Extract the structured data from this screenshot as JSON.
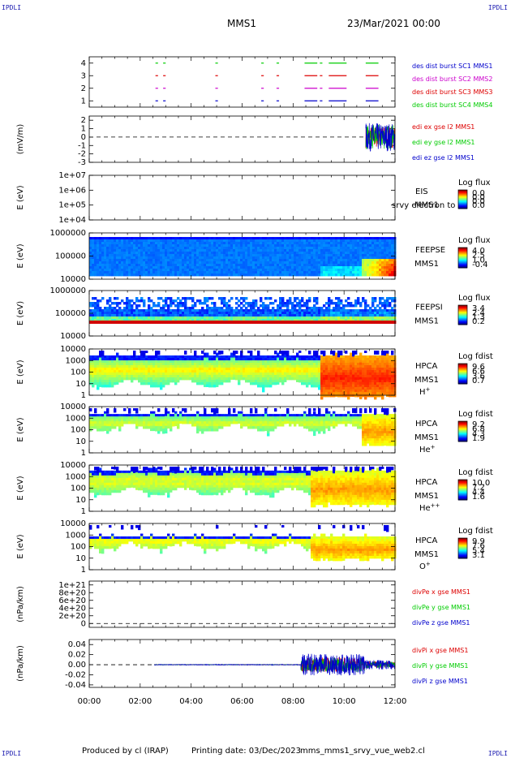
{
  "header": {
    "corner_tl": "IPDLI",
    "corner_tr": "IPDLI",
    "corner_bl": "IPDLI",
    "corner_br": "IPDLI",
    "spacecraft": "MMS1",
    "date": "23/Mar/2021 00:00"
  },
  "footer": {
    "produced": "Produced by cl (IRAP)",
    "printing": "Printing date: 03/Dec/2023",
    "script": "mms_mms1_srvy_vue_web2.cl"
  },
  "chart_data": {
    "type": "multi-panel",
    "x_axis": {
      "range": [
        "00:00",
        "12:00"
      ],
      "ticks": [
        "00:00",
        "02:00",
        "04:00",
        "06:00",
        "08:00",
        "10:00",
        "12:00"
      ]
    },
    "panels": [
      {
        "id": "burst",
        "type": "availability",
        "ylabel": "",
        "ylim": [
          0.5,
          4.5
        ],
        "yticks": [
          "1",
          "2",
          "3",
          "4"
        ],
        "series": [
          {
            "name": "des dist burst SC1 MMS1",
            "color": "#0000cc",
            "y": 1,
            "intervals": [
              [
                2.6,
                2.7
              ],
              [
                2.9,
                3.0
              ],
              [
                4.95,
                5.05
              ],
              [
                6.75,
                6.85
              ],
              [
                7.35,
                7.45
              ],
              [
                8.45,
                8.95
              ],
              [
                9.05,
                9.15
              ],
              [
                9.4,
                10.1
              ],
              [
                10.85,
                11.35
              ]
            ]
          },
          {
            "name": "des dist burst SC2 MMS2",
            "color": "#cc00cc",
            "y": 2,
            "intervals": [
              [
                2.6,
                2.7
              ],
              [
                2.9,
                3.0
              ],
              [
                4.95,
                5.05
              ],
              [
                6.75,
                6.85
              ],
              [
                7.35,
                7.45
              ],
              [
                8.45,
                8.95
              ],
              [
                9.05,
                9.15
              ],
              [
                9.4,
                10.1
              ],
              [
                10.85,
                11.35
              ]
            ]
          },
          {
            "name": "des dist burst SC3 MMS3",
            "color": "#dd0000",
            "y": 3,
            "intervals": [
              [
                2.6,
                2.7
              ],
              [
                2.9,
                3.0
              ],
              [
                4.95,
                5.05
              ],
              [
                6.75,
                6.85
              ],
              [
                7.35,
                7.45
              ],
              [
                8.45,
                8.95
              ],
              [
                9.05,
                9.15
              ],
              [
                9.4,
                10.1
              ],
              [
                10.85,
                11.35
              ]
            ]
          },
          {
            "name": "des dist burst SC4 MMS4",
            "color": "#00cc00",
            "y": 4,
            "intervals": [
              [
                2.6,
                2.7
              ],
              [
                2.9,
                3.0
              ],
              [
                4.95,
                5.05
              ],
              [
                6.75,
                6.85
              ],
              [
                7.35,
                7.45
              ],
              [
                8.45,
                8.95
              ],
              [
                9.05,
                9.15
              ],
              [
                9.4,
                10.1
              ],
              [
                10.85,
                11.35
              ]
            ]
          }
        ]
      },
      {
        "id": "edi",
        "type": "line",
        "ylabel": "(mV/m)",
        "ylim": [
          -3,
          2.5
        ],
        "yticks": [
          "2",
          "1",
          "0",
          "-1",
          "-2",
          "-3"
        ],
        "zero_line": true,
        "series": [
          {
            "name": "edi ex gse l2 MMS1",
            "color": "#dd0000",
            "t_start": 10.85,
            "t_end": 12.0,
            "amplitude": 1.6
          },
          {
            "name": "edi ey gse l2 MMS1",
            "color": "#00cc00",
            "t_start": 10.85,
            "t_end": 12.0,
            "amplitude": 1.8
          },
          {
            "name": "edi ez gse l2 MMS1",
            "color": "#0000cc",
            "t_start": 10.85,
            "t_end": 12.0,
            "amplitude": 1.4
          }
        ]
      },
      {
        "id": "eis",
        "type": "spectrogram",
        "ylabel": "E (eV)",
        "yticks": [
          "1e+07",
          "1e+06",
          "1e+05",
          "1e+04"
        ],
        "instrument": [
          "EIS",
          "MMS1"
        ],
        "overlay_text": "srvy electron to",
        "colorbar": {
          "title": "Log flux",
          "ticks": [
            "0.0",
            "0.0",
            "0.0",
            "0.0"
          ]
        },
        "fill": "empty"
      },
      {
        "id": "feepse",
        "type": "spectrogram",
        "ylabel": "E (eV)",
        "yticks": [
          "1000000",
          "100000",
          "10000"
        ],
        "instrument": [
          "FEEPSE",
          "MMS1"
        ],
        "colorbar": {
          "title": "Log flux",
          "ticks": [
            "4.0",
            "2.5",
            "1.0",
            "-0.4"
          ]
        },
        "fill": "feepse"
      },
      {
        "id": "feepsi",
        "type": "spectrogram",
        "ylabel": "E (eV)",
        "yticks": [
          "1000000",
          "100000",
          "10000"
        ],
        "instrument": [
          "FEEPSI",
          "MMS1"
        ],
        "colorbar": {
          "title": "Log flux",
          "ticks": [
            "3.4",
            "2.4",
            "1.3",
            "0.2"
          ]
        },
        "fill": "feepsi"
      },
      {
        "id": "hpca_h",
        "type": "spectrogram",
        "ylabel": "E (eV)",
        "yticks": [
          "10000",
          "1000",
          "100",
          "10",
          "1"
        ],
        "instrument": [
          "HPCA",
          "MMS1",
          "H+"
        ],
        "colorbar": {
          "title": "Log fdist",
          "ticks": [
            "9.6",
            "6.6",
            "3.6",
            "0.7"
          ]
        },
        "fill": "hpca_h"
      },
      {
        "id": "hpca_he",
        "type": "spectrogram",
        "ylabel": "E (eV)",
        "yticks": [
          "10000",
          "1000",
          "100",
          "10",
          "1"
        ],
        "instrument": [
          "HPCA",
          "MMS1",
          "He+"
        ],
        "colorbar": {
          "title": "Log fdist",
          "ticks": [
            "9.2",
            "6.8",
            "4.3",
            "1.9"
          ]
        },
        "fill": "hpca_he"
      },
      {
        "id": "hpca_he2",
        "type": "spectrogram",
        "ylabel": "E (eV)",
        "yticks": [
          "10000",
          "1000",
          "100",
          "10",
          "1"
        ],
        "instrument": [
          "HPCA",
          "MMS1",
          "He++"
        ],
        "colorbar": {
          "title": "Log fdist",
          "ticks": [
            "10.0",
            "7.2",
            "4.4",
            "1.6"
          ]
        },
        "fill": "hpca_he2"
      },
      {
        "id": "hpca_o",
        "type": "spectrogram",
        "ylabel": "E (eV)",
        "yticks": [
          "10000",
          "1000",
          "100",
          "10",
          "1"
        ],
        "instrument": [
          "HPCA",
          "MMS1",
          "O+"
        ],
        "colorbar": {
          "title": "Log fdist",
          "ticks": [
            "9.9",
            "7.6",
            "5.4",
            "3.1"
          ]
        },
        "fill": "hpca_o"
      },
      {
        "id": "divpe",
        "type": "line",
        "ylabel": "(nPa/km)",
        "ylim": [
          -1e+20,
          1.1e+21
        ],
        "yticks": [
          "1e+21",
          "8e+20",
          "6e+20",
          "4e+20",
          "2e+20",
          "0"
        ],
        "zero_line": true,
        "series": [
          {
            "name": "divPe x gse MMS1",
            "color": "#dd0000"
          },
          {
            "name": "divPe y gse MMS1",
            "color": "#00cc00"
          },
          {
            "name": "divPe z gse MMS1",
            "color": "#0000cc"
          }
        ]
      },
      {
        "id": "divpi",
        "type": "line",
        "ylabel": "(nPa/km)",
        "ylim": [
          -0.045,
          0.05
        ],
        "yticks": [
          "0.04",
          "0.02",
          "0.00",
          "-0.02",
          "-0.04"
        ],
        "zero_line": true,
        "series": [
          {
            "name": "divPi x gse MMS1",
            "color": "#dd0000",
            "t_start": 2.55,
            "t_end": 12.0
          },
          {
            "name": "divPi y gse MMS1",
            "color": "#00cc00",
            "t_start": 2.55,
            "t_end": 12.0
          },
          {
            "name": "divPi z gse MMS1",
            "color": "#0000cc",
            "t_start": 2.55,
            "t_end": 12.0
          }
        ]
      }
    ]
  }
}
